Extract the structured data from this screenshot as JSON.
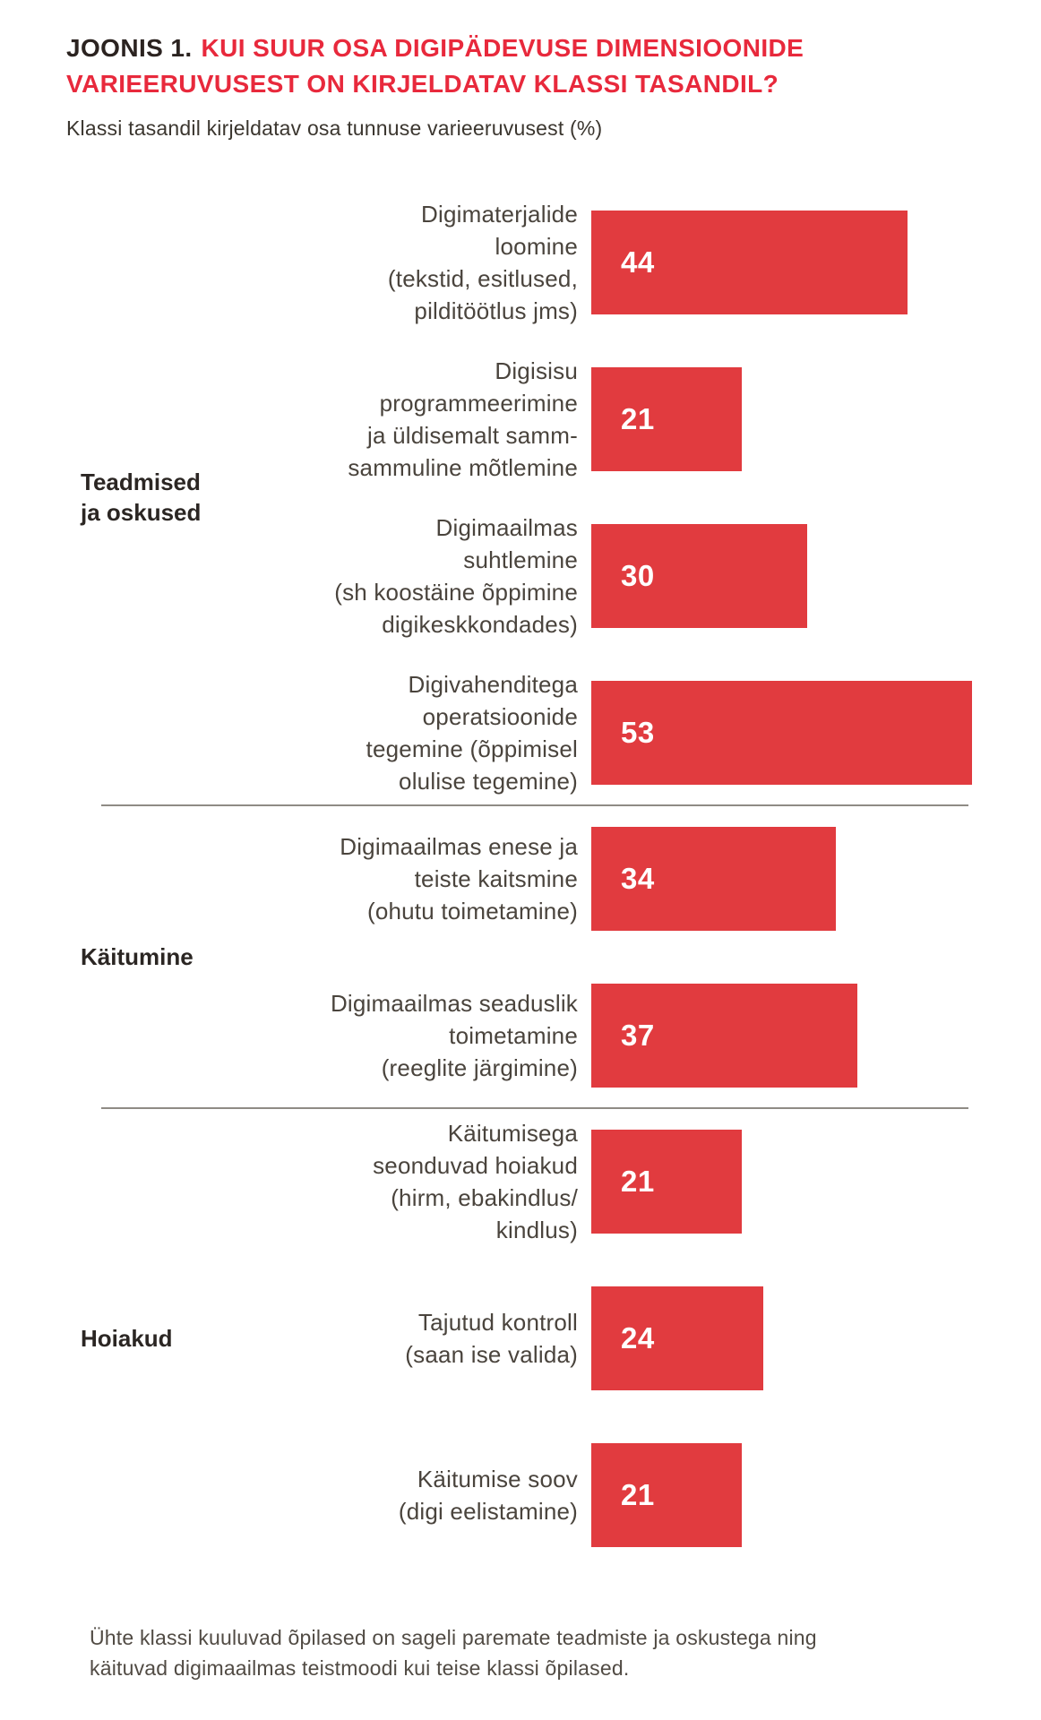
{
  "title": {
    "prefix": "JOONIS 1.",
    "main": "KUI SUUR OSA DIGIPÄDEVUSE DIMENSIOONIDE VARIEERUVUSEST ON KIRJELDATAV KLASSI TASANDIL?"
  },
  "subtitle": "Klassi tasandil kirjeldatav osa tunnuse varieeruvusest (%)",
  "footnote": {
    "text": "Ühte klassi kuuluvad õpilased on sageli paremate teadmiste ja oskustega ning käituvad digimaailmas teistmoodi kui teise klassi õpilased.",
    "lines": [
      "Ühte klassi kuuluvad õpilased on sageli paremate teadmiste ja oskustega ning",
      "käituvad digimaailmas teistmoodi kui teise klassi õpilased."
    ]
  },
  "colors": {
    "bar": "#e13b3f",
    "title_accent": "#e8293c",
    "title_text": "#2b2320",
    "label_text": "#4a443d",
    "divider": "#8f8b85",
    "value_text": "#ffffff"
  },
  "chart_data": {
    "type": "bar",
    "orientation": "horizontal",
    "value_unit": "%",
    "xlim": [
      0,
      55
    ],
    "grid": false,
    "legend": null,
    "title": "KUI SUUR OSA DIGIPÄDEVUSE DIMENSIOONIDE VARIEERUVUSEST ON KIRJELDATAV KLASSI TASANDIL?",
    "ylabel": "Klassi tasandil kirjeldatav osa tunnuse varieeruvusest (%)",
    "groups": [
      {
        "id": "teadmised-ja-oskused",
        "label": "Teadmised ja oskused",
        "label_lines": [
          "Teadmised",
          "ja oskused"
        ],
        "bars": [
          {
            "label": "Digimaterjalide loomine (tekstid, esitlused, pilditöötlus jms)",
            "label_lines": [
              "Digimaterjalide",
              "loomine",
              "(tekstid, esitlused,",
              "pilditöötlus jms)"
            ],
            "value": 44
          },
          {
            "label": "Digisisu programmeerimine ja üldisemalt samm-sammuline mõtlemine",
            "label_lines": [
              "Digisisu",
              "programmeerimine",
              "ja üldisemalt samm-",
              "sammuline mõtlemine"
            ],
            "value": 21
          },
          {
            "label": "Digimaailmas suhtlemine (sh koostäine õppimine digikeskkondades)",
            "label_lines": [
              "Digimaailmas",
              "suhtlemine",
              "(sh koostäine õppimine",
              "digikeskkondades)"
            ],
            "value": 30
          },
          {
            "label": "Digivahenditega operatsioonide tegemine (õppimisel olulise tegemine)",
            "label_lines": [
              "Digivahenditega",
              "operatsioonide",
              "tegemine (õppimisel",
              "olulise tegemine)"
            ],
            "value": 53
          }
        ]
      },
      {
        "id": "kaitumine",
        "label": "Käitumine",
        "label_lines": [
          "Käitumine"
        ],
        "bars": [
          {
            "label": "Digimaailmas enese ja teiste kaitsmine (ohutu toimetamine)",
            "label_lines": [
              "Digimaailmas enese ja",
              "teiste kaitsmine",
              "(ohutu toimetamine)"
            ],
            "value": 34
          },
          {
            "label": "Digimaailmas seaduslik toimetamine (reeglite järgimine)",
            "label_lines": [
              "Digimaailmas seaduslik",
              "toimetamine",
              "(reeglite järgimine)"
            ],
            "value": 37
          }
        ]
      },
      {
        "id": "hoiakud",
        "label": "Hoiakud",
        "label_lines": [
          "Hoiakud"
        ],
        "bars": [
          {
            "label": "Käitumisega seonduvad hoiakud (hirm, ebakindlus/kindlus)",
            "label_lines": [
              "Käitumisega",
              "seonduvad hoiakud",
              "(hirm, ebakindlus/",
              "kindlus)"
            ],
            "value": 21
          },
          {
            "label": "Tajutud kontroll (saan ise valida)",
            "label_lines": [
              "Tajutud kontroll",
              "(saan ise valida)"
            ],
            "value": 24
          },
          {
            "label": "Käitumise soov (digi eelistamine)",
            "label_lines": [
              "Käitumise soov",
              "(digi eelistamine)"
            ],
            "value": 21
          }
        ]
      }
    ]
  }
}
